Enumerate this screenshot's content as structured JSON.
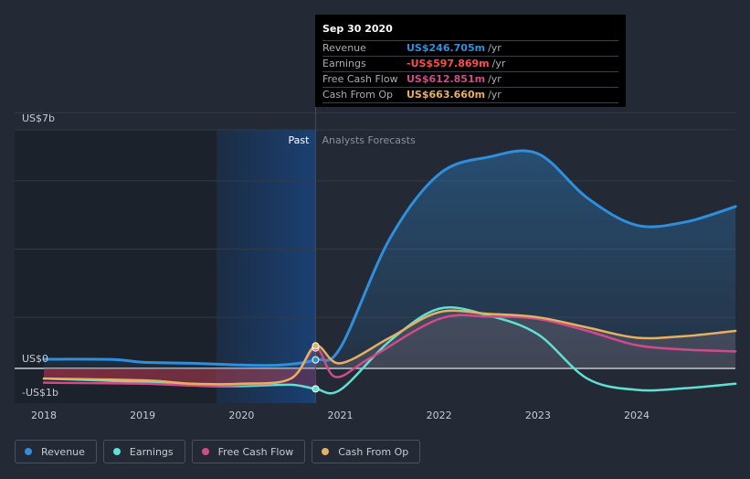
{
  "chart_data": {
    "type": "line",
    "y_unit_labels": {
      "top": "US$7b",
      "zero": "US$0",
      "bottom": "-US$1b"
    },
    "ylim": [
      -1,
      7
    ],
    "xlim": [
      2018,
      2025
    ],
    "x_ticks": [
      "2018",
      "2019",
      "2020",
      "2021",
      "2022",
      "2023",
      "2024"
    ],
    "past_label": "Past",
    "forecast_label": "Analysts Forecasts",
    "past_end_x": 2020.75,
    "series": [
      {
        "name": "Revenue",
        "color": "#2f8fdd",
        "fill": true,
        "points": [
          [
            2018,
            0.27
          ],
          [
            2018.7,
            0.26
          ],
          [
            2019,
            0.18
          ],
          [
            2019.5,
            0.15
          ],
          [
            2020,
            0.1
          ],
          [
            2020.4,
            0.1
          ],
          [
            2020.75,
            0.25
          ],
          [
            2021,
            0.6
          ],
          [
            2021.5,
            3.8
          ],
          [
            2022,
            5.7
          ],
          [
            2022.5,
            6.2
          ],
          [
            2023,
            6.3
          ],
          [
            2023.5,
            5.0
          ],
          [
            2024,
            4.2
          ],
          [
            2024.5,
            4.3
          ],
          [
            2025,
            4.75
          ]
        ]
      },
      {
        "name": "Earnings",
        "color": "#5ee0d2",
        "fill": false,
        "points": [
          [
            2018,
            -0.3
          ],
          [
            2019,
            -0.4
          ],
          [
            2019.5,
            -0.5
          ],
          [
            2020,
            -0.52
          ],
          [
            2020.5,
            -0.48
          ],
          [
            2020.75,
            -0.6
          ],
          [
            2021,
            -0.63
          ],
          [
            2021.5,
            0.8
          ],
          [
            2022,
            1.75
          ],
          [
            2022.5,
            1.55
          ],
          [
            2023,
            1.0
          ],
          [
            2023.5,
            -0.3
          ],
          [
            2024,
            -0.63
          ],
          [
            2024.5,
            -0.58
          ],
          [
            2025,
            -0.45
          ]
        ]
      },
      {
        "name": "Free Cash Flow",
        "color": "#d14b8a",
        "fill": false,
        "points": [
          [
            2018,
            -0.42
          ],
          [
            2019,
            -0.45
          ],
          [
            2019.5,
            -0.5
          ],
          [
            2020,
            -0.48
          ],
          [
            2020.5,
            -0.3
          ],
          [
            2020.75,
            0.6
          ],
          [
            2020.95,
            -0.25
          ],
          [
            2021.3,
            0.3
          ],
          [
            2022,
            1.45
          ],
          [
            2022.5,
            1.52
          ],
          [
            2023,
            1.45
          ],
          [
            2023.5,
            1.1
          ],
          [
            2024,
            0.68
          ],
          [
            2024.5,
            0.55
          ],
          [
            2025,
            0.5
          ]
        ]
      },
      {
        "name": "Cash From Op",
        "color": "#e6b064",
        "fill": false,
        "points": [
          [
            2018,
            -0.3
          ],
          [
            2019,
            -0.35
          ],
          [
            2019.5,
            -0.45
          ],
          [
            2020,
            -0.45
          ],
          [
            2020.5,
            -0.3
          ],
          [
            2020.75,
            0.66
          ],
          [
            2021,
            0.15
          ],
          [
            2021.5,
            0.9
          ],
          [
            2022,
            1.65
          ],
          [
            2022.5,
            1.6
          ],
          [
            2023,
            1.5
          ],
          [
            2023.5,
            1.2
          ],
          [
            2024,
            0.9
          ],
          [
            2024.5,
            0.95
          ],
          [
            2025,
            1.1
          ]
        ]
      }
    ]
  },
  "tooltip": {
    "date": "Sep 30 2020",
    "rows": [
      {
        "label": "Revenue",
        "value": "US$246.705m",
        "unit": "/yr",
        "color": "#2f8fdd"
      },
      {
        "label": "Earnings",
        "value": "-US$597.869m",
        "unit": "/yr",
        "color": "#ff4d4d"
      },
      {
        "label": "Free Cash Flow",
        "value": "US$612.851m",
        "unit": "/yr",
        "color": "#d14b8a"
      },
      {
        "label": "Cash From Op",
        "value": "US$663.660m",
        "unit": "/yr",
        "color": "#e6b064"
      }
    ]
  },
  "legend": [
    {
      "label": "Revenue",
      "color": "#2f8fdd"
    },
    {
      "label": "Earnings",
      "color": "#5ee0d2"
    },
    {
      "label": "Free Cash Flow",
      "color": "#d14b8a"
    },
    {
      "label": "Cash From Op",
      "color": "#e6b064"
    }
  ]
}
